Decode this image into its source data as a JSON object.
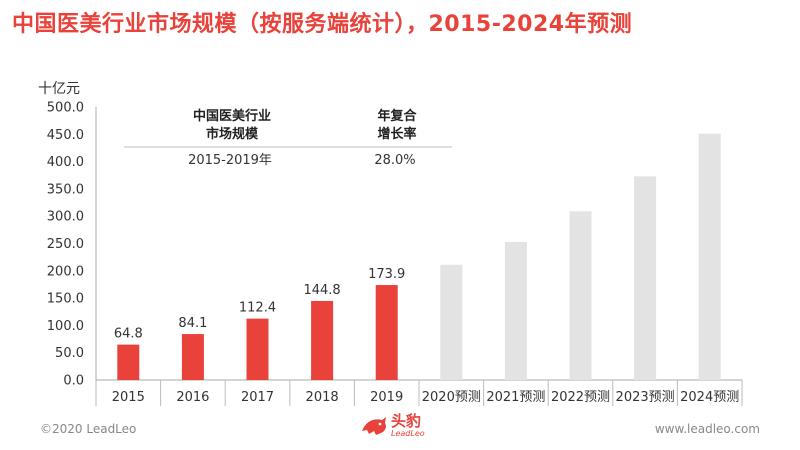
{
  "title": "中国医美行业市场规模（按服务端统计），2015-2024年预测",
  "chart_data": {
    "type": "bar",
    "unit": "十亿元",
    "ylim": [
      0,
      500
    ],
    "yticks": [
      "0.0",
      "50.0",
      "100.0",
      "150.0",
      "200.0",
      "250.0",
      "300.0",
      "350.0",
      "400.0",
      "450.0",
      "500.0"
    ],
    "categories": [
      "2015",
      "2016",
      "2017",
      "2018",
      "2019",
      "2020预测",
      "2021预测",
      "2022预测",
      "2023预测",
      "2024预测"
    ],
    "values": [
      64.8,
      84.1,
      112.4,
      144.8,
      173.9,
      211,
      253,
      309,
      373,
      451
    ],
    "data_labels": [
      "64.8",
      "84.1",
      "112.4",
      "144.8",
      "173.9",
      "",
      "",
      "",
      "",
      ""
    ],
    "actual_color": "#e8423a",
    "forecast_color": "#e3e3e3",
    "table": {
      "headers": [
        [
          "中国医美行业",
          "市场规模"
        ],
        [
          "年复合",
          "增长率"
        ]
      ],
      "row": [
        "2015-2019年",
        "28.0%"
      ]
    }
  },
  "footer": {
    "copyright": "©2020 LeadLeo",
    "website": "www.leadleo.com",
    "logo_cn": "头豹",
    "logo_en": "LeadLeo"
  }
}
